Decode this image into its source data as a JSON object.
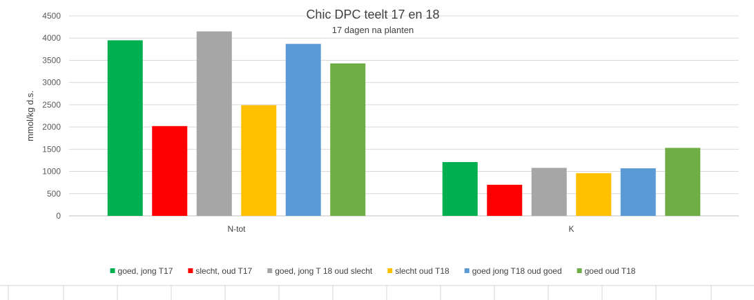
{
  "chart_data": {
    "type": "bar",
    "title": "Chic DPC teelt 17 en 18",
    "subtitle": "17 dagen na planten",
    "xlabel": "",
    "ylabel": "mmol/kg d.s.",
    "ylim": [
      0,
      4500
    ],
    "yticks": [
      "0",
      "500",
      "1000",
      "1500",
      "2000",
      "2500",
      "3000",
      "3500",
      "4000",
      "4500"
    ],
    "grid": true,
    "legend_position": "bottom",
    "categories": [
      "N-tot",
      "K"
    ],
    "series": [
      {
        "name": "goed, jong T17",
        "color": "#00b050",
        "values": [
          3950,
          1210
        ]
      },
      {
        "name": "slecht, oud T17",
        "color": "#ff0000",
        "values": [
          2020,
          700
        ]
      },
      {
        "name": "goed, jong T 18 oud slecht",
        "color": "#a6a6a6",
        "values": [
          4150,
          1080
        ]
      },
      {
        "name": "slecht oud T18",
        "color": "#ffc000",
        "values": [
          2490,
          960
        ]
      },
      {
        "name": "goed jong T18 oud goed",
        "color": "#5b9bd5",
        "values": [
          3870,
          1070
        ]
      },
      {
        "name": "goed oud T18",
        "color": "#70ad47",
        "values": [
          3430,
          1530
        ]
      }
    ]
  }
}
